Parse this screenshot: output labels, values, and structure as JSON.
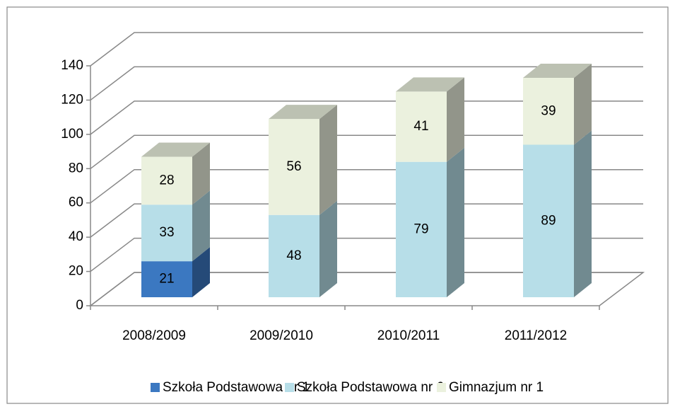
{
  "chart_data": {
    "type": "bar3d_stacked",
    "categories": [
      "2008/2009",
      "2009/2010",
      "2010/2011",
      "2011/2012"
    ],
    "series": [
      {
        "name": "Szkoła Podstawowa nr 1",
        "color": "#3b78c1",
        "values": [
          21,
          null,
          null,
          null
        ]
      },
      {
        "name": "Szkoła Podstawowa nr 6",
        "color": "#b7dee8",
        "values": [
          33,
          48,
          79,
          89
        ]
      },
      {
        "name": "Gimnazjum nr 1",
        "color": "#ebf1de",
        "values": [
          28,
          56,
          41,
          39
        ]
      }
    ],
    "ylim": [
      0,
      140
    ],
    "yticks": [
      0,
      20,
      40,
      60,
      80,
      100,
      120,
      140
    ],
    "grid": true,
    "legend": "bottom"
  }
}
